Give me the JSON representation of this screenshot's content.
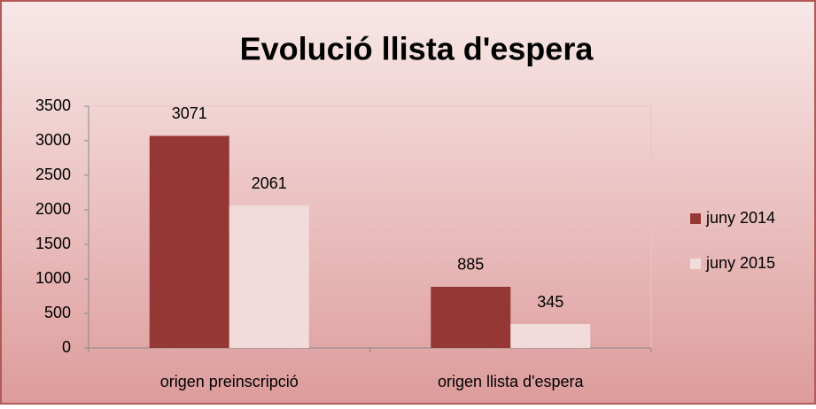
{
  "chart_data": {
    "type": "bar",
    "title": "Evolució llista d'espera",
    "categories": [
      "origen preinscripció",
      "origen llista d'espera"
    ],
    "series": [
      {
        "name": "juny 2014",
        "color": "#953735",
        "values": [
          3071,
          885
        ]
      },
      {
        "name": "juny 2015",
        "color": "#f2dcdb",
        "values": [
          2061,
          345
        ]
      }
    ],
    "ylim": [
      0,
      3500
    ],
    "yticks": [
      0,
      500,
      1000,
      1500,
      2000,
      2500,
      3000,
      3500
    ],
    "grid": false,
    "legend": "right"
  }
}
